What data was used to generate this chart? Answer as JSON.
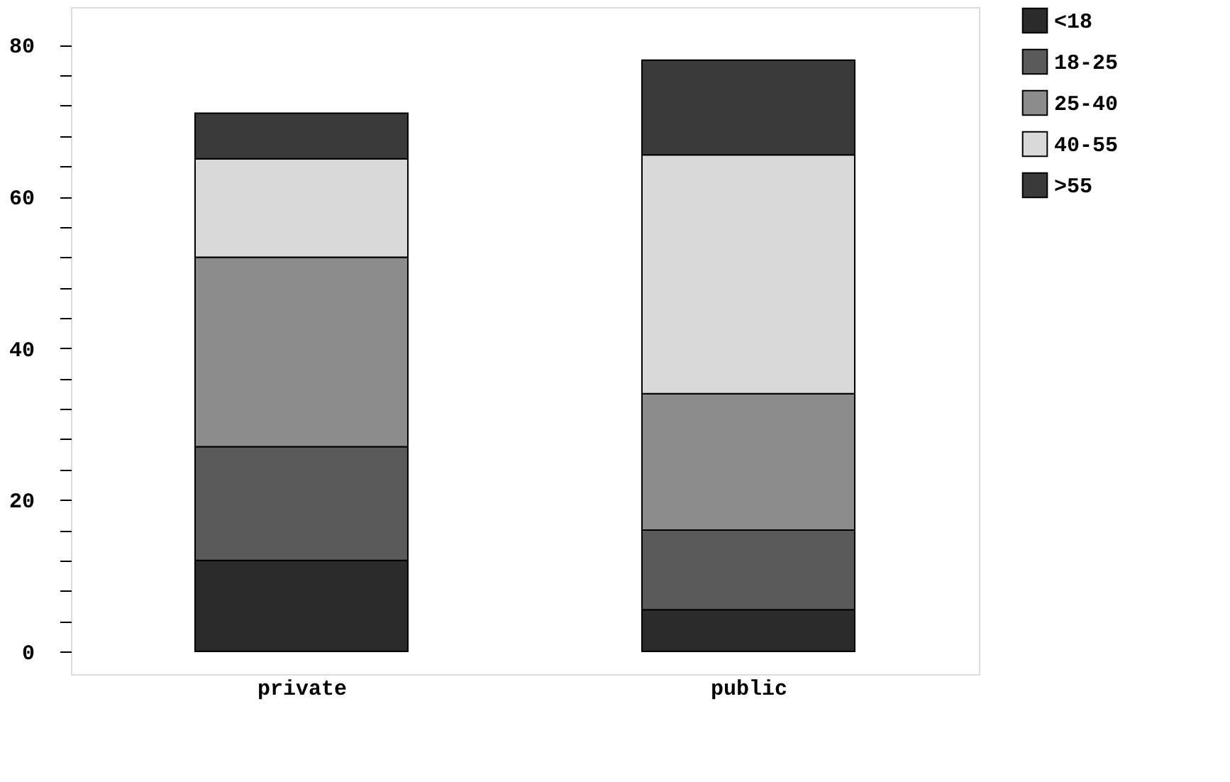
{
  "chart_data": {
    "type": "bar",
    "stacked": true,
    "categories": [
      "private",
      "public"
    ],
    "series": [
      {
        "name": "<18",
        "color": "#2b2b2b",
        "values": [
          12,
          5.5
        ]
      },
      {
        "name": "18-25",
        "color": "#5a5a5a",
        "values": [
          15,
          10.5
        ]
      },
      {
        "name": "25-40",
        "color": "#8c8c8c",
        "values": [
          25,
          18
        ]
      },
      {
        "name": "40-55",
        "color": "#d9d9d9",
        "values": [
          13,
          31.5
        ]
      },
      {
        "name": ">55",
        "color": "#3a3a3a",
        "values": [
          6,
          12.5
        ]
      }
    ],
    "ylim": [
      -3,
      85
    ],
    "yticks": [
      0,
      {
        "value": 4,
        "label": null
      },
      {
        "value": 8,
        "label": null
      },
      {
        "value": 12,
        "label": null
      },
      {
        "value": 16,
        "label": null
      },
      20,
      {
        "value": 24,
        "label": null
      },
      {
        "value": 28,
        "label": null
      },
      {
        "value": 32,
        "label": null
      },
      {
        "value": 36,
        "label": null
      },
      40,
      {
        "value": 44,
        "label": null
      },
      {
        "value": 48,
        "label": null
      },
      {
        "value": 52,
        "label": null
      },
      {
        "value": 56,
        "label": null
      },
      60,
      {
        "value": 64,
        "label": null
      },
      {
        "value": 68,
        "label": null
      },
      {
        "value": 72,
        "label": null
      },
      {
        "value": 76,
        "label": null
      },
      80
    ],
    "grid": false,
    "legend": "right"
  }
}
